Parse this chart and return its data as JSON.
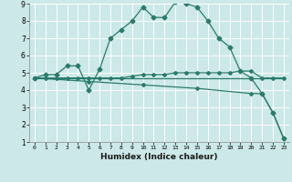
{
  "xlabel": "Humidex (Indice chaleur)",
  "bg_color": "#cce8e8",
  "grid_color": "#ffffff",
  "line_color": "#2a7a6a",
  "xlim": [
    -0.5,
    23.5
  ],
  "ylim": [
    1,
    9
  ],
  "xticks": [
    0,
    1,
    2,
    3,
    4,
    5,
    6,
    7,
    8,
    9,
    10,
    11,
    12,
    13,
    14,
    15,
    16,
    17,
    18,
    19,
    20,
    21,
    22,
    23
  ],
  "yticks": [
    1,
    2,
    3,
    4,
    5,
    6,
    7,
    8,
    9
  ],
  "line1_x": [
    0,
    1,
    2,
    3,
    4,
    5,
    6,
    7,
    8,
    9,
    10,
    11,
    12,
    13,
    14,
    15,
    16,
    17,
    18,
    19,
    20,
    21,
    22,
    23
  ],
  "line1_y": [
    4.7,
    4.9,
    4.9,
    5.4,
    5.4,
    4.0,
    5.2,
    7.0,
    7.5,
    8.0,
    8.8,
    8.2,
    8.2,
    9.1,
    9.0,
    8.8,
    8.0,
    7.0,
    6.5,
    5.1,
    4.7,
    3.8,
    2.7,
    1.2
  ],
  "line2_x": [
    0,
    1,
    2,
    3,
    4,
    5,
    6,
    7,
    8,
    9,
    10,
    11,
    12,
    13,
    14,
    15,
    16,
    17,
    18,
    19,
    20,
    21,
    22,
    23
  ],
  "line2_y": [
    4.7,
    4.7,
    4.7,
    4.7,
    4.7,
    4.7,
    4.7,
    4.7,
    4.7,
    4.8,
    4.9,
    4.9,
    4.9,
    5.0,
    5.0,
    5.0,
    5.0,
    5.0,
    5.0,
    5.1,
    5.1,
    4.7,
    4.7,
    4.7
  ],
  "line3_x": [
    0,
    23
  ],
  "line3_y": [
    4.7,
    4.7
  ],
  "line4_x": [
    0,
    5,
    10,
    15,
    20,
    21,
    22,
    23
  ],
  "line4_y": [
    4.7,
    4.5,
    4.3,
    4.1,
    3.8,
    3.8,
    2.7,
    1.2
  ]
}
